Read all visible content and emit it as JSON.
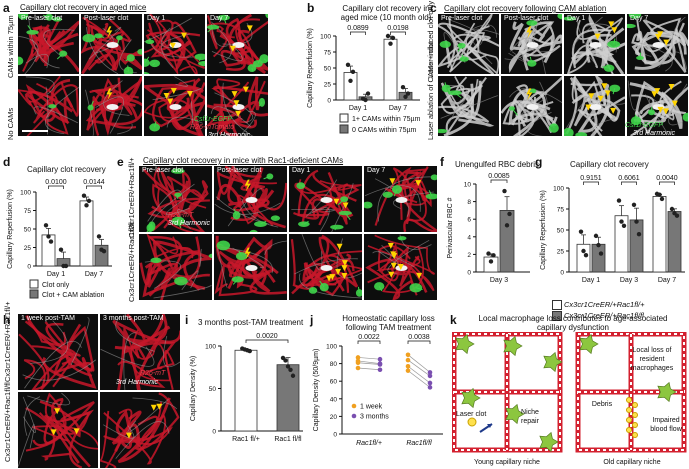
{
  "panels": {
    "a": {
      "letter": "a",
      "title": "Capillary clot recovery in aged mice",
      "columns": [
        "Pre-laser clot",
        "Post-laser clot",
        "Day 1",
        "Day 7"
      ],
      "rows": [
        "CAMs within 75µm",
        "No CAMs"
      ],
      "legend": [
        "Csf1r-EGFP",
        "R26-mTomato",
        "3rd Harmonic"
      ]
    },
    "b": {
      "letter": "b",
      "title": "Capillary clot recovery in aged mice (10 month old)",
      "legend": [
        "1+ CAMs within 75µm",
        "0 CAMs within 75µm"
      ]
    },
    "c": {
      "letter": "c",
      "title": "Capillary clot recovery following CAM ablation",
      "columns": [
        "Pre-laser clot",
        "Post-laser clot",
        "Day 1",
        "Day 7"
      ],
      "rows": [
        "Laser-induced clot only",
        "Laser ablation of CAMs + clot"
      ],
      "legend": [
        "Csf1r-EGFP",
        "3rd Harmonic"
      ]
    },
    "d": {
      "letter": "d",
      "title": "Capillary clot recovery",
      "legend": [
        "Clot only",
        "Clot + CAM ablation"
      ]
    },
    "e": {
      "letter": "e",
      "title": "Capillary clot recovery in mice with Rac1-deficient CAMs",
      "columns": [
        "Pre-laser clot",
        "Post-laser clot",
        "Day 1",
        "Day 7"
      ],
      "rows": [
        "Cx3cr1CreER/+Rac1fl/fl",
        "Cx3cr1CreER/+Rac1fl/+"
      ],
      "legend": [
        "R26-mT",
        "3rd Harmonic"
      ]
    },
    "f": {
      "letter": "f",
      "title": "Unengulfed RBC debris"
    },
    "g": {
      "letter": "g",
      "title": "Capillary clot recovery",
      "legend": [
        "Cx3cr1CreER/+Rac1fl/+",
        "Cx3cr1CreER/+Rac1fl/fl"
      ]
    },
    "h": {
      "letter": "h",
      "columns": [
        "1 week post-TAM",
        "3 months post-TAM"
      ],
      "rows": [
        "Cx3cr1CreER/+Rac1fl/+",
        "Cx3cr1CreER/+Rac1fl/fl"
      ],
      "legend": [
        "R26-mT",
        "3rd Harmonic"
      ]
    },
    "i": {
      "letter": "i",
      "title": "3 months post-TAM treatment"
    },
    "j": {
      "letter": "j",
      "title": "Homeostatic capillary loss following TAM treatment",
      "legend": [
        "1 week",
        "3 months"
      ]
    },
    "k": {
      "letter": "k",
      "title": "Local macrophage loss contributes to age-associated capillary dysfunction",
      "labels": {
        "loss": "Local loss of resident macrophages",
        "laser": "Laser clot",
        "repair": "Niche repair",
        "debris": "Debris",
        "impaired": "Impaired blood flow",
        "young": "Young capillary niche",
        "old": "Old capillary niche"
      }
    }
  },
  "chart_data": [
    {
      "id": "b",
      "type": "bar",
      "categories": [
        "Day 1",
        "Day 7"
      ],
      "series": [
        {
          "name": "1+ CAMs within 75µm",
          "values": [
            43,
            95
          ],
          "points": [
            [
              55,
              30,
              44
            ],
            [
              100,
              88,
              97
            ]
          ]
        },
        {
          "name": "0 CAMs within 75µm",
          "values": [
            5,
            12
          ],
          "points": [
            [
              2,
              0,
              10
            ],
            [
              20,
              5,
              10
            ]
          ]
        }
      ],
      "pvalues": [
        "0.0899",
        "0.0198"
      ],
      "ylabel": "Capillary Reperfusion (%)",
      "ylim": [
        0,
        100
      ],
      "yticks": [
        0,
        25,
        50,
        75,
        100
      ]
    },
    {
      "id": "d",
      "type": "bar",
      "categories": [
        "Day 1",
        "Day 7"
      ],
      "series": [
        {
          "name": "Clot only",
          "values": [
            42,
            88
          ],
          "points": [
            [
              55,
              40,
              33
            ],
            [
              95,
              82,
              88
            ]
          ]
        },
        {
          "name": "Clot + CAM ablation",
          "values": [
            10,
            28
          ],
          "points": [
            [
              22,
              0,
              0
            ],
            [
              40,
              22,
              20
            ]
          ]
        }
      ],
      "pvalues": [
        "0.0100",
        "0.0144"
      ],
      "ylabel": "Capillary Reperfusion (%)",
      "ylim": [
        0,
        100
      ],
      "yticks": [
        0,
        25,
        50,
        75,
        100
      ]
    },
    {
      "id": "f",
      "type": "bar",
      "categories": [
        "Day 3"
      ],
      "series": [
        {
          "name": "Cx3cr1CreER/+Rac1fl/+",
          "values": [
            1.7
          ],
          "points": [
            [
              2.1,
              1.2,
              1.9
            ]
          ]
        },
        {
          "name": "Cx3cr1CreER/+Rac1fl/fl",
          "values": [
            7.0
          ],
          "points": [
            [
              9.2,
              5.3,
              6.6
            ]
          ]
        }
      ],
      "pvalues": [
        "0.0085"
      ],
      "ylabel": "Perivascular RBC #",
      "ylim": [
        0,
        10
      ],
      "yticks": [
        0,
        2,
        4,
        6,
        8,
        10
      ]
    },
    {
      "id": "g",
      "type": "bar",
      "categories": [
        "Day 1",
        "Day 3",
        "Day 7"
      ],
      "series": [
        {
          "name": "Cx3cr1CreER/+Rac1fl/+",
          "values": [
            33,
            67,
            90
          ],
          "points": [
            [
              48,
              25,
              20
            ],
            [
              85,
              60,
              55
            ],
            [
              93,
              92,
              87
            ]
          ]
        },
        {
          "name": "Cx3cr1CreER/+Rac1fl/fl",
          "values": [
            33,
            62,
            72
          ],
          "points": [
            [
              43,
              32,
              22
            ],
            [
              80,
              60,
              45
            ],
            [
              75,
              70,
              67
            ]
          ]
        }
      ],
      "pvalues": [
        "0.9151",
        "0.6061",
        "0.0040"
      ],
      "ylabel": "Capillary Reperfusion (%)",
      "ylim": [
        0,
        100
      ],
      "yticks": [
        0,
        25,
        50,
        75,
        100
      ]
    },
    {
      "id": "i",
      "type": "bar",
      "categories": [
        "Rac1 fl/+",
        "Rac1 fl/fl"
      ],
      "values": [
        95,
        78
      ],
      "points": [
        [
          97,
          96,
          95,
          94
        ],
        [
          86,
          83,
          76,
          72,
          65
        ]
      ],
      "pvalues": [
        "0.0020"
      ],
      "ylabel": "Capillary Density (%)",
      "ylim": [
        0,
        100
      ],
      "yticks": [
        0,
        50,
        100
      ]
    },
    {
      "id": "j",
      "type": "scatter",
      "categories": [
        "Rac1fl/+",
        "Rac1fl/fl"
      ],
      "series": [
        {
          "name": "1 week",
          "pairs": {
            "Rac1fl/+": [
              87,
              83,
              81,
              75
            ],
            "Rac1fl/fl": [
              90,
              84,
              77,
              72
            ]
          }
        },
        {
          "name": "3 months",
          "pairs": {
            "Rac1fl/+": [
              85,
              80,
              79,
              73
            ],
            "Rac1fl/fl": [
              70,
              66,
              58,
              53
            ]
          }
        }
      ],
      "pvalues": [
        "0.0022",
        "0.0038"
      ],
      "ylabel": "Capillary Density (50/9µm)",
      "ylim": [
        0,
        100
      ],
      "yticks": [
        0,
        20,
        40,
        60,
        80,
        100
      ]
    }
  ]
}
